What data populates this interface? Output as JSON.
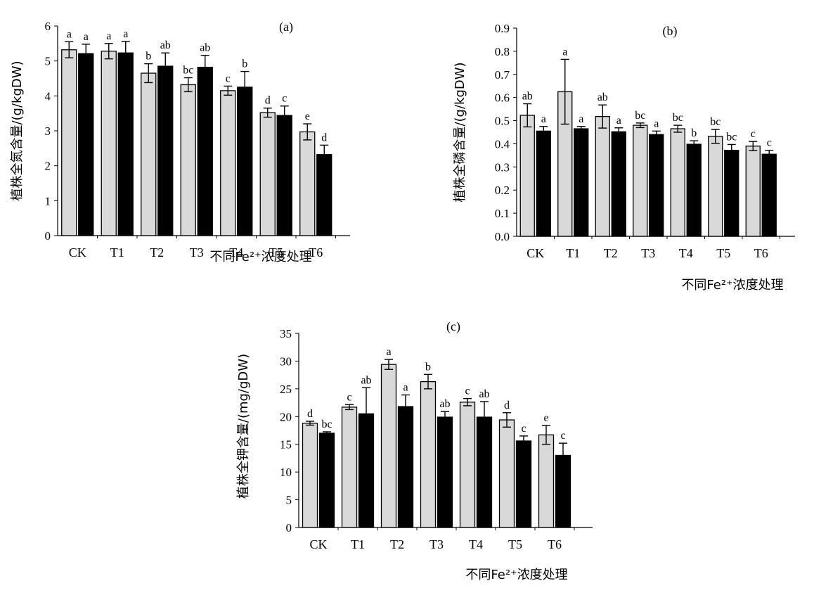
{
  "chart_data": [
    {
      "type": "bar",
      "title": "",
      "panel_label": "(a)",
      "ylabel": "植株全氮含量/(g/kgDW)",
      "xlabel": "不同Fe²⁺浓度处理",
      "categories": [
        "CK",
        "T1",
        "T2",
        "T3",
        "T4",
        "T5",
        "T6"
      ],
      "ylim": [
        0,
        6
      ],
      "yticks": [
        "0",
        "1",
        "2",
        "3",
        "4",
        "5",
        "6"
      ],
      "series": [
        {
          "color": "#d9d9d9",
          "values": [
            5.32,
            5.28,
            4.65,
            4.32,
            4.15,
            3.52,
            2.97
          ],
          "errors": [
            0.23,
            0.22,
            0.27,
            0.2,
            0.13,
            0.13,
            0.23
          ],
          "labels": [
            "a",
            "a",
            "b",
            "bc",
            "c",
            "d",
            "e"
          ]
        },
        {
          "color": "#000000",
          "values": [
            5.21,
            5.23,
            4.85,
            4.82,
            4.25,
            3.44,
            2.32
          ],
          "errors": [
            0.27,
            0.33,
            0.38,
            0.34,
            0.45,
            0.27,
            0.27
          ],
          "labels": [
            "a",
            "a",
            "ab",
            "ab",
            "b",
            "c",
            "d"
          ]
        }
      ]
    },
    {
      "type": "bar",
      "title": "",
      "panel_label": "(b)",
      "ylabel": "植株全磷含量/(g/kgDW)",
      "xlabel": "不同Fe²⁺浓度处理",
      "categories": [
        "CK",
        "T1",
        "T2",
        "T3",
        "T4",
        "T5",
        "T6"
      ],
      "ylim": [
        0,
        0.9
      ],
      "yticks": [
        "0.0",
        "0.1",
        "0.2",
        "0.3",
        "0.4",
        "0.5",
        "0.6",
        "0.7",
        "0.8",
        "0.9"
      ],
      "series": [
        {
          "color": "#d9d9d9",
          "values": [
            0.523,
            0.625,
            0.518,
            0.48,
            0.465,
            0.432,
            0.39
          ],
          "errors": [
            0.05,
            0.14,
            0.05,
            0.01,
            0.015,
            0.03,
            0.02
          ],
          "labels": [
            "ab",
            "a",
            "ab",
            "bc",
            "bc",
            "bc",
            "c"
          ]
        },
        {
          "color": "#000000",
          "values": [
            0.455,
            0.465,
            0.452,
            0.44,
            0.398,
            0.372,
            0.355
          ],
          "errors": [
            0.02,
            0.01,
            0.017,
            0.015,
            0.015,
            0.025,
            0.017
          ],
          "labels": [
            "a",
            "a",
            "a",
            "a",
            "b",
            "bc",
            "c"
          ]
        }
      ]
    },
    {
      "type": "bar",
      "title": "",
      "panel_label": "(c)",
      "ylabel": "植株全钾含量/(mg/gDW)",
      "xlabel": "不同Fe²⁺浓度处理",
      "categories": [
        "CK",
        "T1",
        "T2",
        "T3",
        "T4",
        "T5",
        "T6"
      ],
      "ylim": [
        0,
        35
      ],
      "yticks": [
        "0",
        "5",
        "10",
        "15",
        "20",
        "25",
        "30",
        "35"
      ],
      "series": [
        {
          "color": "#d9d9d9",
          "values": [
            18.8,
            21.7,
            29.4,
            26.3,
            22.6,
            19.4,
            16.7
          ],
          "errors": [
            0.35,
            0.45,
            0.9,
            1.3,
            0.65,
            1.3,
            1.7
          ],
          "labels": [
            "d",
            "c",
            "a",
            "b",
            "c",
            "d",
            "e"
          ]
        },
        {
          "color": "#000000",
          "values": [
            17.0,
            20.5,
            21.8,
            19.9,
            19.9,
            15.6,
            13.0
          ],
          "errors": [
            0.25,
            4.7,
            2.1,
            1.0,
            2.8,
            0.9,
            2.2
          ],
          "labels": [
            "bc",
            "ab",
            "a",
            "ab",
            "ab",
            "c",
            "c"
          ]
        }
      ]
    }
  ]
}
